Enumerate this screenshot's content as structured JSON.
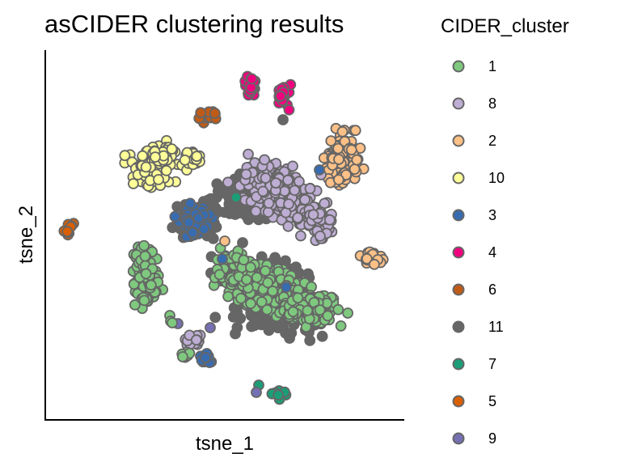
{
  "chart_data": {
    "type": "scatter",
    "title": "asCIDER clustering results",
    "xlabel": "tsne_1",
    "ylabel": "tsne_2",
    "grid": false,
    "legend": {
      "title": "CIDER_cluster",
      "placement": "right",
      "entries": [
        {
          "label": "1",
          "color": "#7FC97F"
        },
        {
          "label": "8",
          "color": "#BEAED4"
        },
        {
          "label": "2",
          "color": "#FDC086"
        },
        {
          "label": "10",
          "color": "#FFFF99"
        },
        {
          "label": "3",
          "color": "#386CB0"
        },
        {
          "label": "4",
          "color": "#F0027F"
        },
        {
          "label": "6",
          "color": "#BF5B17"
        },
        {
          "label": "11",
          "color": "#666666"
        },
        {
          "label": "7",
          "color": "#1B9E77"
        },
        {
          "label": "5",
          "color": "#D95F02"
        },
        {
          "label": "9",
          "color": "#7570B3"
        }
      ]
    },
    "marker_stroke": "#666666"
  }
}
